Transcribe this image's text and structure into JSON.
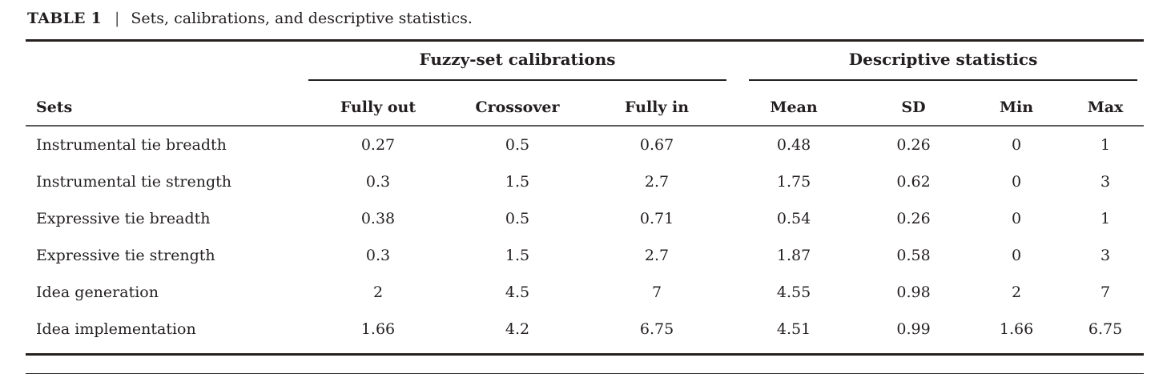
{
  "title": {
    "label": "TABLE 1",
    "separator": "|",
    "caption": "Sets, calibrations, and descriptive statistics."
  },
  "table": {
    "row_header": "Sets",
    "groups": [
      {
        "label": "Fuzzy-set calibrations",
        "columns": [
          "Fully out",
          "Crossover",
          "Fully in"
        ]
      },
      {
        "label": "Descriptive statistics",
        "columns": [
          "Mean",
          "SD",
          "Min",
          "Max"
        ]
      }
    ],
    "rows": [
      {
        "label": "Instrumental tie breadth",
        "values": [
          "0.27",
          "0.5",
          "0.67",
          "0.48",
          "0.26",
          "0",
          "1"
        ]
      },
      {
        "label": "Instrumental tie strength",
        "values": [
          "0.3",
          "1.5",
          "2.7",
          "1.75",
          "0.62",
          "0",
          "3"
        ]
      },
      {
        "label": "Expressive tie breadth",
        "values": [
          "0.38",
          "0.5",
          "0.71",
          "0.54",
          "0.26",
          "0",
          "1"
        ]
      },
      {
        "label": "Expressive tie strength",
        "values": [
          "0.3",
          "1.5",
          "2.7",
          "1.87",
          "0.58",
          "0",
          "3"
        ]
      },
      {
        "label": "Idea generation",
        "values": [
          "2",
          "4.5",
          "7",
          "4.55",
          "0.98",
          "2",
          "7"
        ]
      },
      {
        "label": "Idea implementation",
        "values": [
          "1.66",
          "4.2",
          "6.75",
          "4.51",
          "0.99",
          "1.66",
          "6.75"
        ]
      }
    ]
  },
  "colors": {
    "text": "#231f20",
    "thick_rule": "#26211f",
    "header_rule": "#5b5b5d",
    "background": "#ffffff"
  }
}
